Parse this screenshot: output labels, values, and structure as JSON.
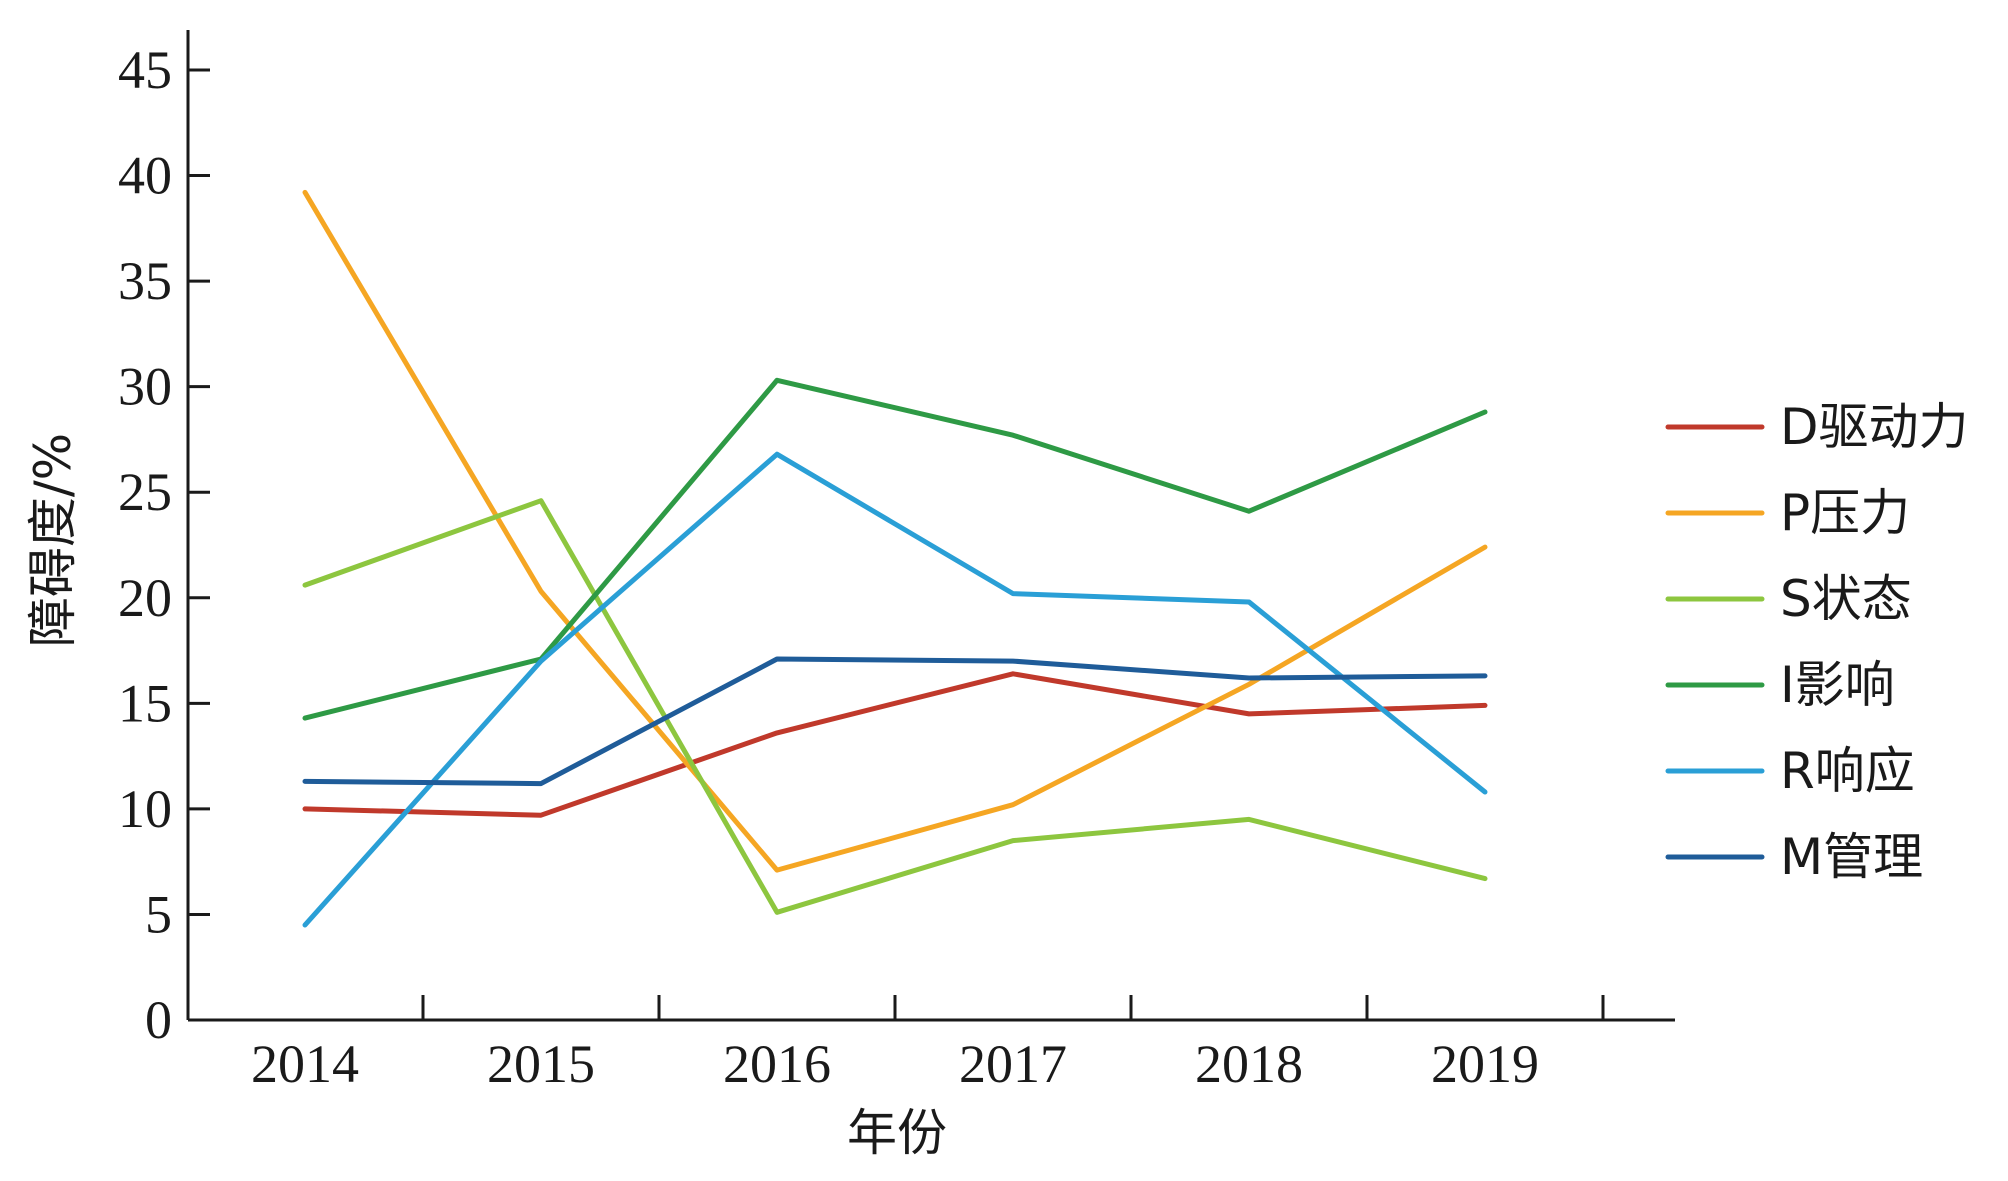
{
  "chart_data": {
    "type": "line",
    "title": "",
    "xlabel": "年份",
    "ylabel": "障碍度/%",
    "categories": [
      "2014",
      "2015",
      "2016",
      "2017",
      "2018",
      "2019"
    ],
    "ylim": [
      0,
      45
    ],
    "yticks": [
      0,
      5,
      10,
      15,
      20,
      25,
      30,
      35,
      40,
      45
    ],
    "legend_position": "right",
    "grid": false,
    "series": [
      {
        "name": "D驱动力",
        "color": "#c0392b",
        "values": [
          10.0,
          9.7,
          13.6,
          16.4,
          14.5,
          14.9
        ]
      },
      {
        "name": "P压力",
        "color": "#f5a623",
        "values": [
          39.2,
          20.3,
          7.1,
          10.2,
          15.9,
          22.4
        ]
      },
      {
        "name": "S状态",
        "color": "#8dc63f",
        "values": [
          20.6,
          24.6,
          5.1,
          8.5,
          9.5,
          6.7
        ]
      },
      {
        "name": "I影响",
        "color": "#2e9a45",
        "values": [
          14.3,
          17.1,
          30.3,
          27.7,
          24.1,
          28.8
        ]
      },
      {
        "name": "R响应",
        "color": "#2a9fd6",
        "values": [
          4.5,
          17.0,
          26.8,
          20.2,
          19.8,
          10.8
        ]
      },
      {
        "name": "M管理",
        "color": "#1f5c99",
        "values": [
          11.3,
          11.2,
          17.1,
          17.0,
          16.2,
          16.3
        ]
      }
    ]
  }
}
